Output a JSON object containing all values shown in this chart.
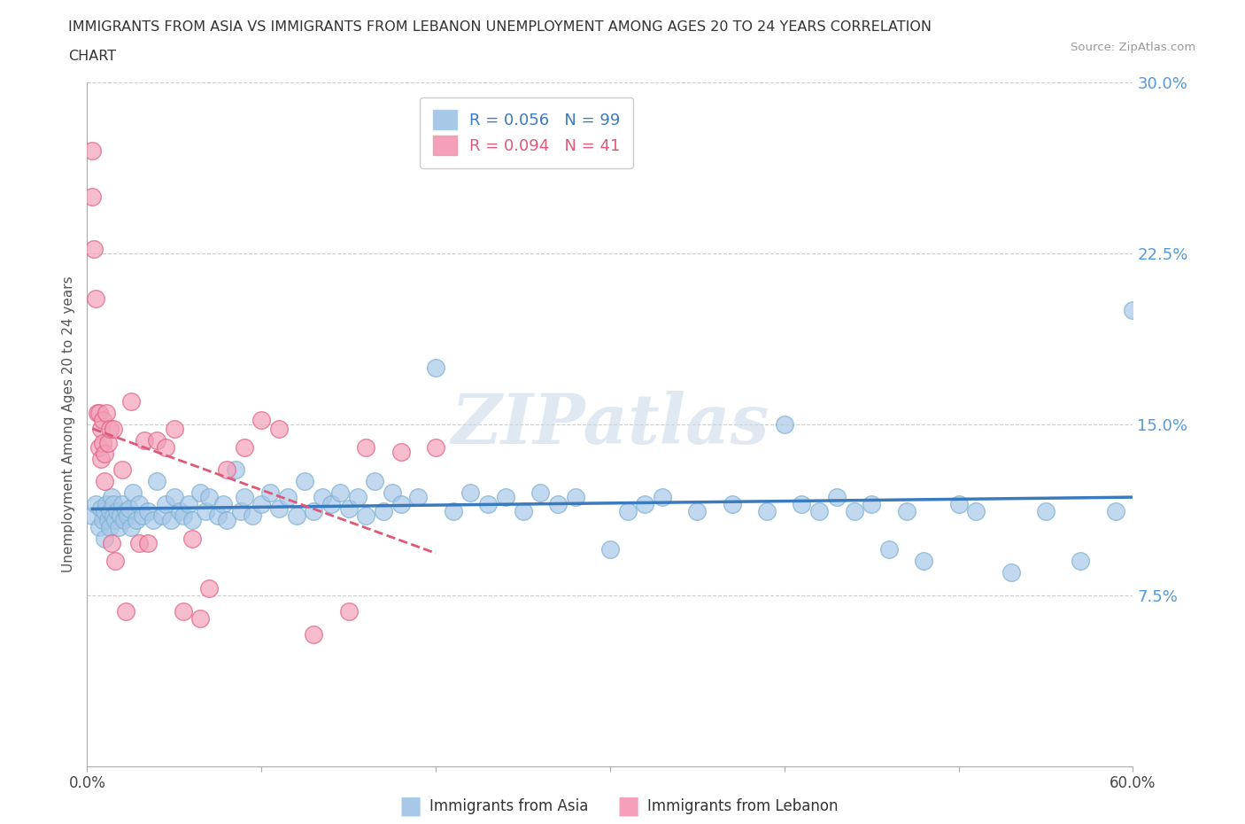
{
  "title_line1": "IMMIGRANTS FROM ASIA VS IMMIGRANTS FROM LEBANON UNEMPLOYMENT AMONG AGES 20 TO 24 YEARS CORRELATION",
  "title_line2": "CHART",
  "source": "Source: ZipAtlas.com",
  "ylabel": "Unemployment Among Ages 20 to 24 years",
  "xlim": [
    0.0,
    0.6
  ],
  "ylim": [
    0.0,
    0.3
  ],
  "yticks_right": [
    0.075,
    0.15,
    0.225,
    0.3
  ],
  "ytick_labels_right": [
    "7.5%",
    "15.0%",
    "22.5%",
    "30.0%"
  ],
  "xtick_labels": [
    "0.0%",
    "",
    "",
    "",
    "",
    "",
    "60.0%"
  ],
  "xtick_positions": [
    0.0,
    0.1,
    0.2,
    0.3,
    0.4,
    0.5,
    0.6
  ],
  "gridline_color": "#cccccc",
  "background_color": "#ffffff",
  "watermark_color": "#c8d8e8",
  "series": [
    {
      "name": "Immigrants from Asia",
      "R": 0.056,
      "N": 99,
      "color": "#a8c8e8",
      "edge_color": "#7ab0d4",
      "trend_color": "#3a7abf",
      "trend_solid": true,
      "x": [
        0.003,
        0.005,
        0.007,
        0.008,
        0.009,
        0.01,
        0.01,
        0.011,
        0.012,
        0.013,
        0.013,
        0.014,
        0.015,
        0.015,
        0.016,
        0.017,
        0.018,
        0.019,
        0.02,
        0.021,
        0.022,
        0.023,
        0.024,
        0.025,
        0.026,
        0.028,
        0.03,
        0.032,
        0.035,
        0.038,
        0.04,
        0.043,
        0.045,
        0.048,
        0.05,
        0.053,
        0.055,
        0.058,
        0.06,
        0.065,
        0.068,
        0.07,
        0.075,
        0.078,
        0.08,
        0.085,
        0.088,
        0.09,
        0.095,
        0.1,
        0.105,
        0.11,
        0.115,
        0.12,
        0.125,
        0.13,
        0.135,
        0.14,
        0.145,
        0.15,
        0.155,
        0.16,
        0.165,
        0.17,
        0.175,
        0.18,
        0.19,
        0.2,
        0.21,
        0.22,
        0.23,
        0.24,
        0.25,
        0.26,
        0.27,
        0.28,
        0.3,
        0.31,
        0.32,
        0.33,
        0.35,
        0.37,
        0.39,
        0.4,
        0.41,
        0.42,
        0.43,
        0.44,
        0.45,
        0.46,
        0.47,
        0.48,
        0.5,
        0.51,
        0.53,
        0.55,
        0.57,
        0.59,
        0.6
      ],
      "y": [
        0.11,
        0.115,
        0.105,
        0.113,
        0.108,
        0.112,
        0.1,
        0.115,
        0.108,
        0.112,
        0.105,
        0.118,
        0.11,
        0.115,
        0.108,
        0.112,
        0.105,
        0.11,
        0.115,
        0.108,
        0.112,
        0.11,
        0.113,
        0.105,
        0.12,
        0.108,
        0.115,
        0.11,
        0.112,
        0.108,
        0.125,
        0.11,
        0.115,
        0.108,
        0.118,
        0.112,
        0.11,
        0.115,
        0.108,
        0.12,
        0.112,
        0.118,
        0.11,
        0.115,
        0.108,
        0.13,
        0.112,
        0.118,
        0.11,
        0.115,
        0.12,
        0.113,
        0.118,
        0.11,
        0.125,
        0.112,
        0.118,
        0.115,
        0.12,
        0.113,
        0.118,
        0.11,
        0.125,
        0.112,
        0.12,
        0.115,
        0.118,
        0.175,
        0.112,
        0.12,
        0.115,
        0.118,
        0.112,
        0.12,
        0.115,
        0.118,
        0.095,
        0.112,
        0.115,
        0.118,
        0.112,
        0.115,
        0.112,
        0.15,
        0.115,
        0.112,
        0.118,
        0.112,
        0.115,
        0.095,
        0.112,
        0.09,
        0.115,
        0.112,
        0.085,
        0.112,
        0.09,
        0.112,
        0.2
      ]
    },
    {
      "name": "Immigrants from Lebanon",
      "R": 0.094,
      "N": 41,
      "color": "#f4a0b8",
      "edge_color": "#e06080",
      "trend_color": "#e05878",
      "trend_solid": false,
      "x": [
        0.003,
        0.003,
        0.004,
        0.005,
        0.006,
        0.007,
        0.007,
        0.008,
        0.008,
        0.009,
        0.009,
        0.01,
        0.01,
        0.011,
        0.012,
        0.013,
        0.014,
        0.015,
        0.016,
        0.02,
        0.022,
        0.025,
        0.03,
        0.033,
        0.035,
        0.04,
        0.045,
        0.05,
        0.055,
        0.06,
        0.065,
        0.07,
        0.08,
        0.09,
        0.1,
        0.11,
        0.13,
        0.15,
        0.16,
        0.18,
        0.2
      ],
      "y": [
        0.27,
        0.25,
        0.227,
        0.205,
        0.155,
        0.155,
        0.14,
        0.148,
        0.135,
        0.152,
        0.142,
        0.137,
        0.125,
        0.155,
        0.142,
        0.148,
        0.098,
        0.148,
        0.09,
        0.13,
        0.068,
        0.16,
        0.098,
        0.143,
        0.098,
        0.143,
        0.14,
        0.148,
        0.068,
        0.1,
        0.065,
        0.078,
        0.13,
        0.14,
        0.152,
        0.148,
        0.058,
        0.068,
        0.14,
        0.138,
        0.14
      ]
    }
  ]
}
